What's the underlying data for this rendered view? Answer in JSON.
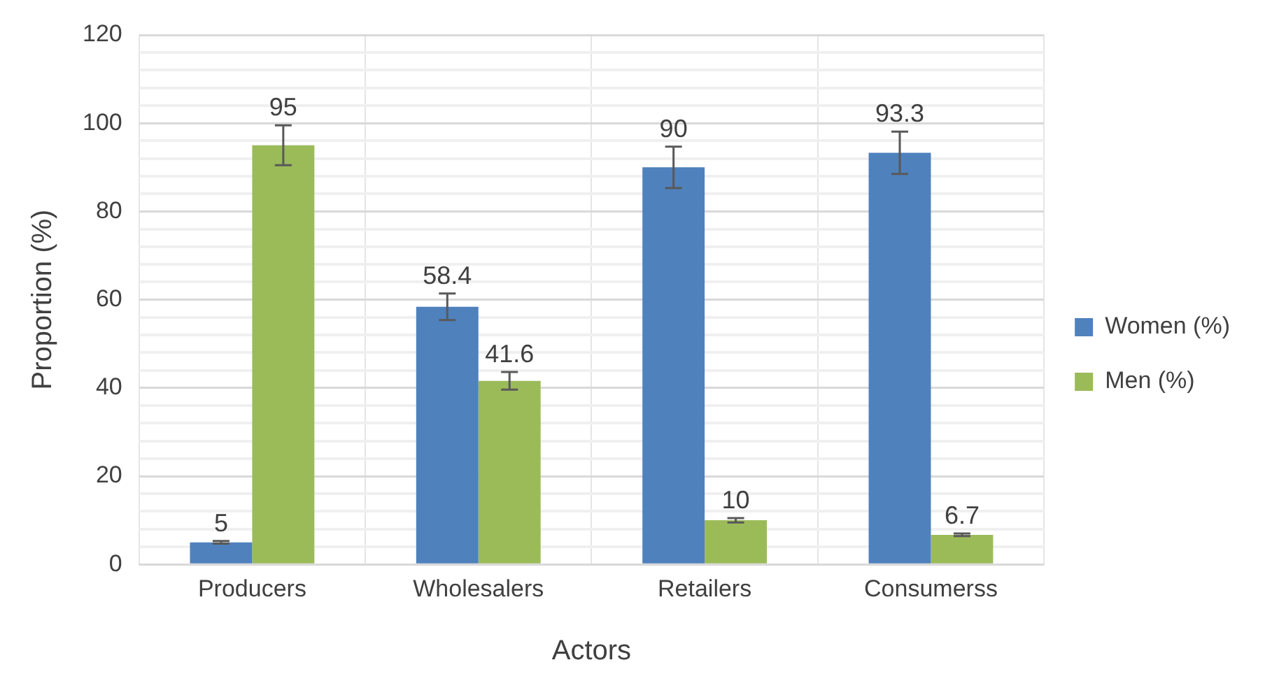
{
  "chart_data": {
    "type": "bar",
    "xlabel": "Actors",
    "ylabel": "Proportion (%)",
    "categories": [
      "Producers",
      "Wholesalers",
      "Retailers",
      "Consumerss"
    ],
    "series": [
      {
        "name": "Women (%)",
        "color": "#4f81bd",
        "values": [
          5,
          58.4,
          90,
          93.3
        ],
        "errors": [
          0.3,
          3,
          4.7,
          4.8
        ]
      },
      {
        "name": "Men (%)",
        "color": "#9bbb59",
        "values": [
          95,
          41.6,
          10,
          6.7
        ],
        "errors": [
          4.5,
          2,
          0.5,
          0.3
        ]
      }
    ],
    "ylim": [
      0,
      120
    ],
    "yticks": [
      0,
      {
        "value": 4,
        "label": null
      },
      {
        "value": 8,
        "label": null
      },
      {
        "value": 12,
        "label": null
      },
      {
        "value": 16,
        "label": null
      },
      20,
      {
        "value": 24,
        "label": null
      },
      {
        "value": 28,
        "label": null
      },
      {
        "value": 32,
        "label": null
      },
      {
        "value": 36,
        "label": null
      },
      40,
      {
        "value": 44,
        "label": null
      },
      {
        "value": 48,
        "label": null
      },
      {
        "value": 52,
        "label": null
      },
      {
        "value": 56,
        "label": null
      },
      60,
      {
        "value": 64,
        "label": null
      },
      {
        "value": 68,
        "label": null
      },
      {
        "value": 72,
        "label": null
      },
      {
        "value": 76,
        "label": null
      },
      80,
      {
        "value": 84,
        "label": null
      },
      {
        "value": 88,
        "label": null
      },
      {
        "value": 92,
        "label": null
      },
      {
        "value": 96,
        "label": null
      },
      100,
      {
        "value": 104,
        "label": null
      },
      {
        "value": 108,
        "label": null
      },
      {
        "value": 112,
        "label": null
      },
      {
        "value": 116,
        "label": null
      },
      120
    ],
    "grid": true,
    "legend": "right",
    "data_labels": true
  }
}
